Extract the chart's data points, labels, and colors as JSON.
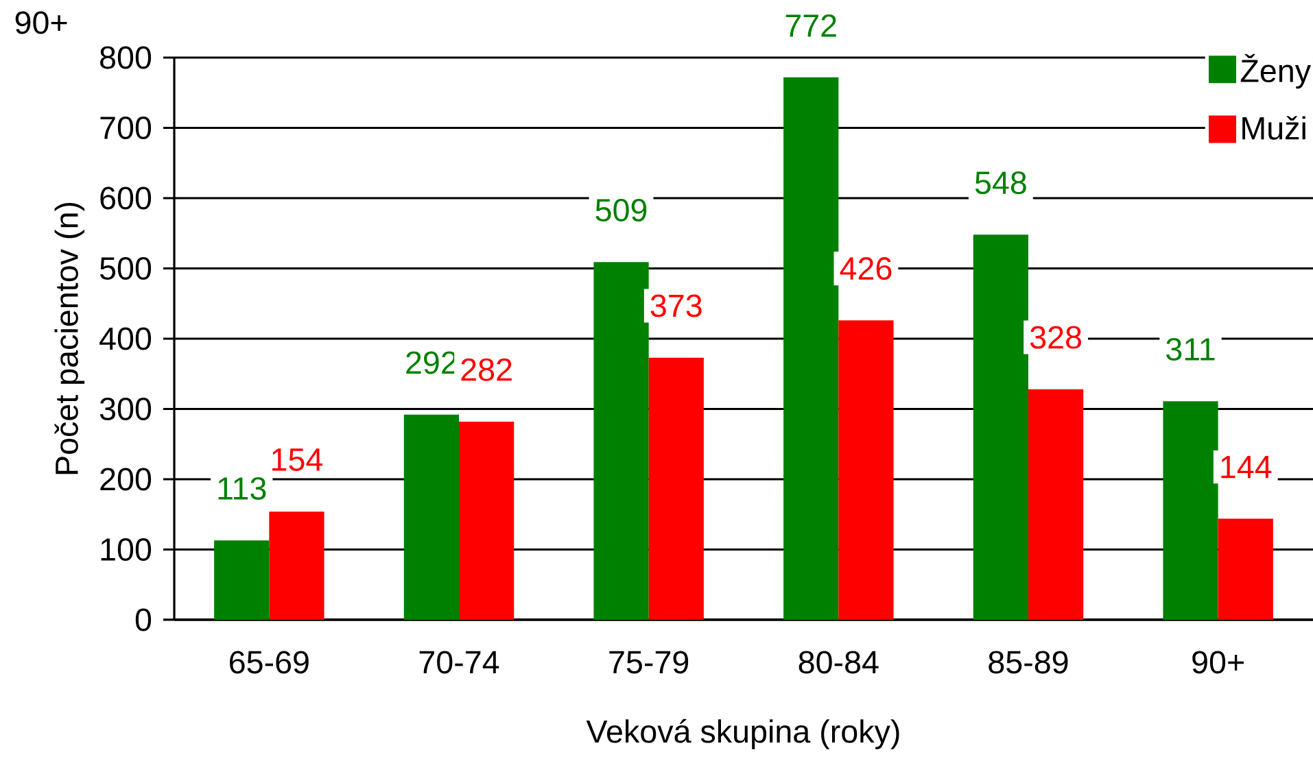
{
  "chart_data": {
    "type": "bar",
    "xlabel": "Veková skupina (roky)",
    "ylabel": "Počet pacientov (n)",
    "categories": [
      "65-69",
      "70-74",
      "75-79",
      "80-84",
      "85-89",
      "90+"
    ],
    "series": [
      {
        "name": "Ženy",
        "color": "#008000",
        "values": [
          113,
          292,
          509,
          772,
          548,
          311
        ]
      },
      {
        "name": "Muži",
        "color": "#ff0000",
        "values": [
          154,
          282,
          373,
          426,
          328,
          144
        ]
      }
    ],
    "ylim": [
      0,
      800
    ],
    "yticks": [
      0,
      100,
      200,
      300,
      400,
      500,
      600,
      700,
      800
    ],
    "grid": "y",
    "legend": "top right",
    "data_labels": true,
    "annotations": [
      "90+"
    ]
  }
}
